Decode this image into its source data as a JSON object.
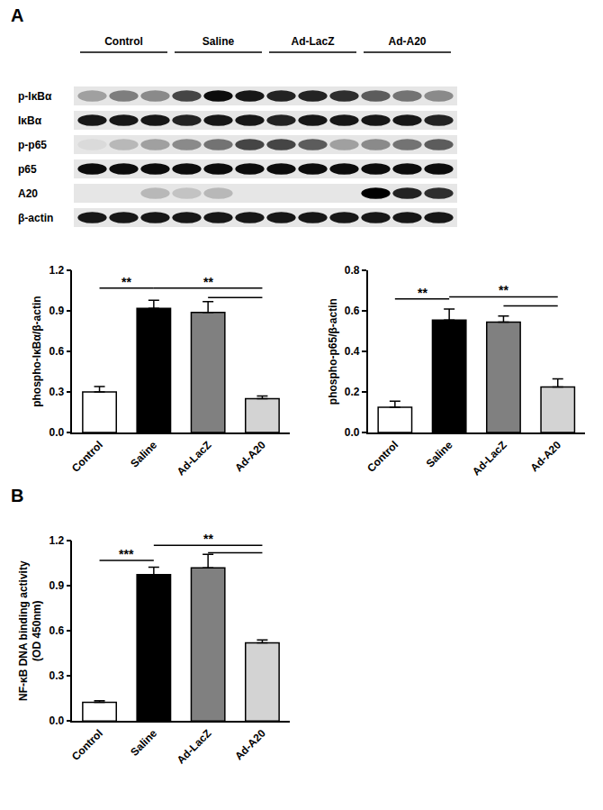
{
  "panel_labels": [
    "A",
    "B"
  ],
  "blot": {
    "groups": [
      {
        "name": "Control",
        "lanes": 3
      },
      {
        "name": "Saline",
        "lanes": 3
      },
      {
        "name": "Ad-LacZ",
        "lanes": 3
      },
      {
        "name": "Ad-A20",
        "lanes": 3
      }
    ],
    "rows": [
      {
        "label": "p-IκBα",
        "bands": [
          0.3,
          0.45,
          0.4,
          0.7,
          0.95,
          0.9,
          0.85,
          0.85,
          0.8,
          0.6,
          0.5,
          0.4
        ]
      },
      {
        "label": "IκBα",
        "bands": [
          0.9,
          0.9,
          0.9,
          0.85,
          0.9,
          0.9,
          0.85,
          0.9,
          0.9,
          0.9,
          0.9,
          0.85
        ]
      },
      {
        "label": "p-p65",
        "bands": [
          0.05,
          0.2,
          0.3,
          0.4,
          0.5,
          0.7,
          0.7,
          0.6,
          0.3,
          0.4,
          0.5,
          0.6
        ]
      },
      {
        "label": "p65",
        "bands": [
          0.95,
          0.95,
          0.95,
          0.95,
          0.95,
          0.95,
          0.95,
          0.95,
          0.95,
          0.95,
          0.95,
          0.95
        ]
      },
      {
        "label": "A20",
        "bands": [
          0,
          0,
          0.2,
          0.15,
          0.2,
          0,
          0,
          0,
          0,
          1,
          0.85,
          0.8
        ]
      },
      {
        "label": "β-actin",
        "bands": [
          0.9,
          0.9,
          0.9,
          0.9,
          0.9,
          0.9,
          0.9,
          0.9,
          0.9,
          0.9,
          0.9,
          0.9
        ]
      }
    ]
  },
  "chart_data": [
    {
      "type": "bar",
      "y_label": "phospho-IκBα/β-actin",
      "categories": [
        "Control",
        "Saline",
        "Ad-LacZ",
        "Ad-A20"
      ],
      "values": [
        0.3,
        0.92,
        0.89,
        0.25
      ],
      "errors": [
        0.04,
        0.06,
        0.08,
        0.02
      ],
      "colors": [
        "#ffffff",
        "#000000",
        "#808080",
        "#d3d3d3"
      ],
      "ylim": [
        0,
        1.2
      ],
      "yticks": [
        {
          "value": 0,
          "label": "0.0"
        },
        0.3,
        0.6,
        0.9,
        1.2
      ],
      "significance": [
        {
          "from": 0,
          "to": 1,
          "y": 1.07,
          "label": "**"
        },
        {
          "from": 1,
          "to": 3,
          "y": 1.07,
          "label": "**"
        },
        {
          "from": 2,
          "to": 3,
          "y": 1.0
        }
      ]
    },
    {
      "type": "bar",
      "y_label": "phospho-p65/β-actin",
      "categories": [
        "Control",
        "Saline",
        "Ad-LacZ",
        "Ad-A20"
      ],
      "values": [
        0.125,
        0.555,
        0.545,
        0.225
      ],
      "errors": [
        0.03,
        0.055,
        0.03,
        0.04
      ],
      "colors": [
        "#ffffff",
        "#000000",
        "#808080",
        "#d3d3d3"
      ],
      "ylim": [
        0,
        0.8
      ],
      "yticks": [
        {
          "value": 0,
          "label": "0.0"
        },
        0.2,
        0.4,
        0.6,
        0.8
      ],
      "significance": [
        {
          "from": 0,
          "to": 1,
          "y": 0.66,
          "label": "**"
        },
        {
          "from": 1,
          "to": 3,
          "y": 0.67,
          "label": "**"
        },
        {
          "from": 2,
          "to": 3,
          "y": 0.625
        }
      ]
    },
    {
      "type": "bar",
      "y_label": "NF-κB DNA binding activity\n(OD 450nm)",
      "categories": [
        "Control",
        "Saline",
        "Ad-LacZ",
        "Ad-A20"
      ],
      "values": [
        0.125,
        0.975,
        1.02,
        0.52
      ],
      "errors": [
        0.01,
        0.05,
        0.09,
        0.02
      ],
      "colors": [
        "#ffffff",
        "#000000",
        "#808080",
        "#d3d3d3"
      ],
      "ylim": [
        0,
        1.2
      ],
      "yticks": [
        {
          "value": 0,
          "label": "0.0"
        },
        0.3,
        0.6,
        0.9,
        1.2
      ],
      "significance": [
        {
          "from": 0,
          "to": 1,
          "y": 1.07,
          "label": "***"
        },
        {
          "from": 1,
          "to": 3,
          "y": 1.17,
          "label": "**"
        },
        {
          "from": 2,
          "to": 3,
          "y": 1.12
        }
      ]
    }
  ]
}
